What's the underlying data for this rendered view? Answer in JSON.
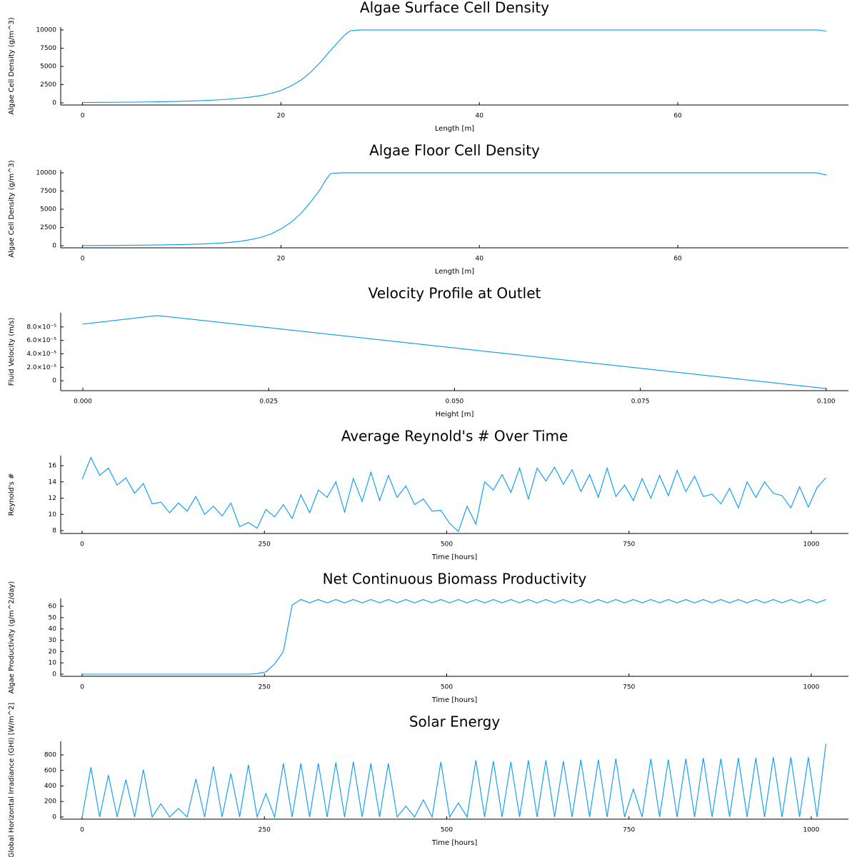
{
  "chart_data": [
    {
      "type": "line",
      "title": "Algae Surface Cell Density",
      "x_label": "Length [m]",
      "y_label": "Algae Cell Density (g/m^3)",
      "color": "#009af9",
      "x": [
        0,
        2,
        4,
        6,
        8,
        10,
        12,
        14,
        16,
        17,
        18,
        19,
        20,
        21,
        22,
        23,
        24,
        25,
        26,
        26.5,
        27,
        28,
        40,
        60,
        74,
        75
      ],
      "values": [
        50,
        65,
        85,
        110,
        150,
        210,
        300,
        430,
        650,
        800,
        1000,
        1300,
        1700,
        2300,
        3100,
        4200,
        5600,
        7200,
        8700,
        9400,
        9900,
        10000,
        10000,
        10000,
        10000,
        9850
      ],
      "xlim": [
        -2.2,
        77.2
      ],
      "ylim": [
        -294,
        10390
      ],
      "xticks": [
        0,
        20,
        40,
        60
      ],
      "yticks": [
        0,
        2500,
        5000,
        7500,
        10000
      ]
    },
    {
      "type": "line",
      "title": "Algae Floor Cell Density",
      "x_label": "Length [m]",
      "y_label": "Algae Cell Density (g/m^3)",
      "color": "#009af9",
      "x": [
        0,
        2,
        4,
        6,
        8,
        10,
        12,
        14,
        15,
        16,
        17,
        18,
        19,
        20,
        21,
        22,
        23,
        24,
        24.5,
        25,
        26,
        40,
        60,
        74,
        75
      ],
      "values": [
        20,
        30,
        45,
        70,
        100,
        150,
        230,
        360,
        470,
        620,
        850,
        1150,
        1600,
        2300,
        3200,
        4400,
        6000,
        7800,
        9000,
        9900,
        10000,
        10000,
        10000,
        10000,
        9700
      ],
      "xlim": [
        -2.2,
        77.2
      ],
      "ylim": [
        -294,
        10390
      ],
      "xticks": [
        0,
        20,
        40,
        60
      ],
      "yticks": [
        0,
        2500,
        5000,
        7500,
        10000
      ]
    },
    {
      "type": "line",
      "title": "Velocity Profile at Outlet",
      "x_label": "Height [m]",
      "y_label": "Fluid Velocity (m/s)",
      "color": "#009af9",
      "x": [
        0,
        0.01,
        0.1
      ],
      "values": [
        8.42e-05,
        9.7e-05,
        -1.16e-05
      ],
      "xlim": [
        -0.00298,
        0.103
      ],
      "ylim": [
        -1.47e-05,
        0.000101
      ],
      "xticks": [
        {
          "value": 0,
          "label": "0.000"
        },
        {
          "value": 0.025,
          "label": "0.025"
        },
        {
          "value": 0.05,
          "label": "0.050"
        },
        {
          "value": 0.075,
          "label": "0.075"
        },
        {
          "value": 0.1,
          "label": "0.100"
        }
      ],
      "yticks": [
        0,
        {
          "value": 2e-05,
          "label": "2.0×10⁻⁵"
        },
        {
          "value": 4e-05,
          "label": "4.0×10⁻⁵"
        },
        {
          "value": 6e-05,
          "label": "6.0×10⁻⁵"
        },
        {
          "value": 8e-05,
          "label": "8.0×10⁻⁵"
        }
      ]
    },
    {
      "type": "line",
      "title": "Average Reynold's # Over Time",
      "x_label": "Time [hours]",
      "y_label": "Reynold's #",
      "color": "#009af9",
      "x": [
        0,
        12,
        24,
        36,
        48,
        60,
        72,
        84,
        96,
        108,
        120,
        132,
        144,
        156,
        168,
        180,
        192,
        204,
        216,
        228,
        240,
        252,
        264,
        276,
        288,
        300,
        312,
        324,
        336,
        348,
        360,
        372,
        384,
        396,
        408,
        420,
        432,
        444,
        456,
        468,
        480,
        492,
        504,
        516,
        528,
        540,
        552,
        564,
        576,
        588,
        600,
        612,
        624,
        636,
        648,
        660,
        672,
        684,
        696,
        708,
        720,
        732,
        744,
        756,
        768,
        780,
        792,
        804,
        816,
        828,
        840,
        852,
        864,
        876,
        888,
        900,
        912,
        924,
        936,
        948,
        960,
        972,
        984,
        996,
        1008,
        1020
      ],
      "values": [
        14.3,
        17,
        14.8,
        15.7,
        13.6,
        14.5,
        12.6,
        13.8,
        11.3,
        11.5,
        10.2,
        11.4,
        10.4,
        12.2,
        10.0,
        11.0,
        9.8,
        11.4,
        8.5,
        9.0,
        8.3,
        10.6,
        9.7,
        11.2,
        9.5,
        12.4,
        10.2,
        13.0,
        12.1,
        14.0,
        10.3,
        14.4,
        11.6,
        15.2,
        11.7,
        14.8,
        12.1,
        13.5,
        11.2,
        11.9,
        10.4,
        10.5,
        8.9,
        7.9,
        11.0,
        8.8,
        14.0,
        13.0,
        14.9,
        12.7,
        15.7,
        11.9,
        15.7,
        14.1,
        15.8,
        13.7,
        15.5,
        12.8,
        14.9,
        12.1,
        15.7,
        12.2,
        13.6,
        11.7,
        14.4,
        12.0,
        14.8,
        12.3,
        15.4,
        12.8,
        14.7,
        12.2,
        12.5,
        11.3,
        13.2,
        10.8,
        14.0,
        12.1,
        14.0,
        12.6,
        12.3,
        10.8,
        13.4,
        10.9,
        13.3,
        14.5
      ],
      "xlim": [
        -29.4,
        1051
      ],
      "ylim": [
        7.65,
        17.23
      ],
      "xticks": [
        0,
        250,
        500,
        750,
        1000
      ],
      "yticks": [
        8,
        10,
        12,
        14,
        16
      ]
    },
    {
      "type": "line",
      "title": "Net Continuous Biomass Productivity",
      "x_label": "Time [hours]",
      "y_label": "Algae Productivity (g/m^2/day)",
      "color": "#009af9",
      "x": [
        0,
        12,
        24,
        36,
        48,
        60,
        72,
        84,
        96,
        108,
        120,
        132,
        144,
        156,
        168,
        180,
        192,
        204,
        216,
        228,
        240,
        252,
        264,
        276,
        288,
        300,
        312,
        324,
        336,
        348,
        360,
        372,
        384,
        396,
        408,
        420,
        432,
        444,
        456,
        468,
        480,
        492,
        504,
        516,
        528,
        540,
        552,
        564,
        576,
        588,
        600,
        612,
        624,
        636,
        648,
        660,
        672,
        684,
        696,
        708,
        720,
        732,
        744,
        756,
        768,
        780,
        792,
        804,
        816,
        828,
        840,
        852,
        864,
        876,
        888,
        900,
        912,
        924,
        936,
        948,
        960,
        972,
        984,
        996,
        1008,
        1020
      ],
      "values": [
        0,
        0,
        0,
        0,
        0,
        0,
        0,
        0,
        0,
        0,
        0,
        0,
        0,
        0,
        0,
        0,
        0,
        0,
        0,
        0,
        0.5,
        2,
        9,
        20,
        61,
        66,
        63,
        66,
        63,
        66,
        63,
        66,
        63,
        66,
        63,
        66,
        63,
        66,
        63,
        66,
        63,
        66,
        63,
        66,
        63,
        66,
        63,
        66,
        63,
        66,
        63,
        66,
        63,
        66,
        63,
        66,
        63,
        66,
        63,
        66,
        63,
        66,
        63,
        66,
        63,
        66,
        63,
        66,
        63,
        66,
        63,
        66,
        63,
        66,
        63,
        66,
        63,
        66,
        63,
        66,
        63,
        66,
        63,
        66,
        63,
        66
      ],
      "xlim": [
        -29.4,
        1051
      ],
      "ylim": [
        -1.9,
        66.9
      ],
      "xticks": [
        0,
        250,
        500,
        750,
        1000
      ],
      "yticks": [
        0,
        10,
        20,
        30,
        40,
        50,
        60
      ]
    },
    {
      "type": "line",
      "title": "Solar Energy",
      "x_label": "Time [hours]",
      "y_label": "Global Horizontal Irradiance (GHI) [W/m^2]",
      "color": "#009af9",
      "x": [
        0,
        12,
        24,
        36,
        48,
        60,
        72,
        84,
        96,
        108,
        120,
        132,
        144,
        156,
        168,
        180,
        192,
        204,
        216,
        228,
        240,
        252,
        264,
        276,
        288,
        300,
        312,
        324,
        336,
        348,
        360,
        372,
        384,
        396,
        408,
        420,
        432,
        444,
        456,
        468,
        480,
        492,
        504,
        516,
        528,
        540,
        552,
        564,
        576,
        588,
        600,
        612,
        624,
        636,
        648,
        660,
        672,
        684,
        696,
        708,
        720,
        732,
        744,
        756,
        768,
        780,
        792,
        804,
        816,
        828,
        840,
        852,
        864,
        876,
        888,
        900,
        912,
        924,
        936,
        948,
        960,
        972,
        984,
        996,
        1008,
        1020
      ],
      "values": [
        0,
        640,
        0,
        540,
        0,
        480,
        0,
        610,
        0,
        170,
        0,
        110,
        0,
        490,
        0,
        650,
        0,
        560,
        0,
        670,
        0,
        300,
        0,
        690,
        0,
        690,
        0,
        690,
        0,
        700,
        0,
        710,
        0,
        690,
        0,
        690,
        0,
        140,
        0,
        220,
        0,
        710,
        0,
        180,
        0,
        730,
        0,
        720,
        0,
        710,
        0,
        730,
        0,
        730,
        0,
        720,
        0,
        740,
        0,
        740,
        0,
        750,
        0,
        360,
        0,
        750,
        0,
        740,
        0,
        750,
        0,
        760,
        0,
        750,
        0,
        760,
        0,
        760,
        0,
        770,
        0,
        770,
        0,
        770,
        0,
        940
      ],
      "xlim": [
        -29.4,
        1051
      ],
      "ylim": [
        -28,
        975
      ],
      "xticks": [
        0,
        250,
        500,
        750,
        1000
      ],
      "yticks": [
        0,
        200,
        400,
        600,
        800
      ]
    }
  ]
}
